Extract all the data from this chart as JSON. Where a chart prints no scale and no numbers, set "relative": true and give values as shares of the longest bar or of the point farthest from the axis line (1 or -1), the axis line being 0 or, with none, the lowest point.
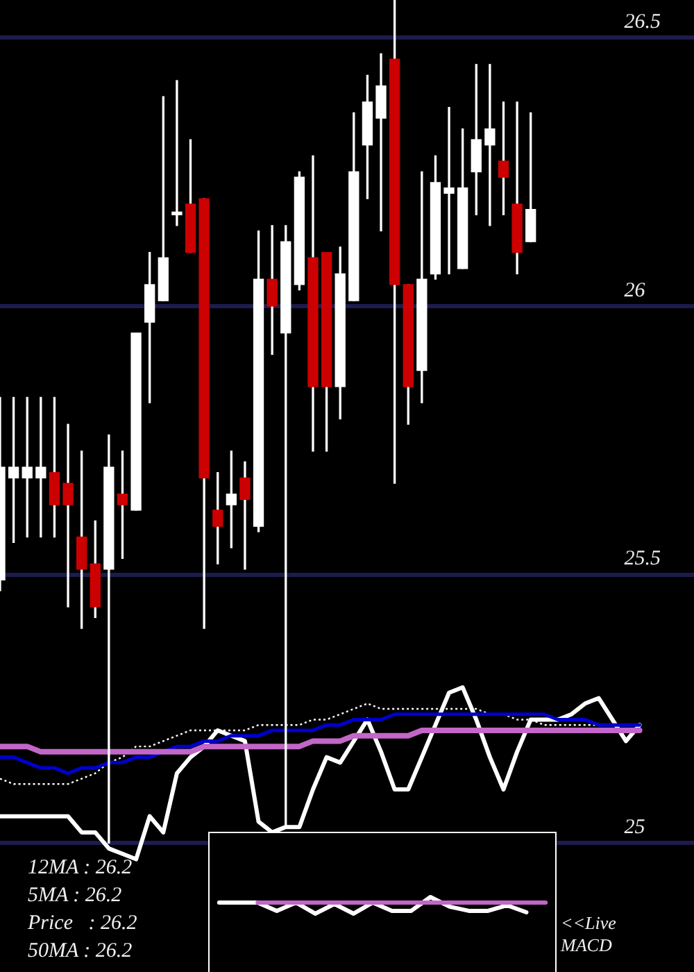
{
  "chart_data": [
    {
      "type": "candlestick",
      "categories": [
        null,
        null,
        null,
        null,
        null,
        null,
        null,
        null,
        null,
        null,
        null,
        null,
        null,
        null,
        null,
        null,
        null,
        null,
        null,
        null,
        null,
        null,
        null,
        null,
        null,
        null,
        null,
        null,
        null,
        null,
        null,
        null,
        null,
        null,
        null,
        null,
        null,
        null,
        null,
        null,
        null,
        null,
        null,
        null,
        null,
        null,
        null,
        null,
        null,
        null,
        null,
        null
      ],
      "ohlc": [
        [
          25.49,
          25.83,
          25.47,
          25.7
        ],
        [
          25.68,
          25.83,
          25.56,
          25.7
        ],
        [
          25.68,
          25.83,
          25.57,
          25.7
        ],
        [
          25.68,
          25.83,
          25.57,
          25.7
        ],
        [
          25.69,
          25.83,
          25.57,
          25.63
        ],
        [
          25.67,
          25.78,
          25.44,
          25.63
        ],
        [
          25.57,
          25.73,
          25.4,
          25.51
        ],
        [
          25.52,
          25.6,
          25.42,
          25.44
        ],
        [
          25.51,
          25.76,
          25.0,
          25.7
        ],
        [
          25.65,
          25.73,
          25.53,
          25.63
        ],
        [
          25.62,
          25.95,
          25.62,
          25.95
        ],
        [
          25.97,
          26.1,
          25.82,
          26.04
        ],
        [
          26.01,
          26.39,
          26.01,
          26.09
        ],
        [
          26.17,
          26.42,
          26.15,
          26.17
        ],
        [
          26.19,
          26.31,
          26.1,
          26.1
        ],
        [
          26.2,
          26.2,
          25.4,
          25.68
        ],
        [
          25.62,
          25.69,
          25.52,
          25.59
        ],
        [
          25.63,
          25.73,
          25.55,
          25.65
        ],
        [
          25.68,
          25.71,
          25.51,
          25.64
        ],
        [
          25.59,
          26.14,
          25.58,
          26.05
        ],
        [
          26.05,
          26.15,
          25.91,
          26.0
        ],
        [
          25.95,
          26.15,
          25.03,
          26.12
        ],
        [
          26.04,
          26.25,
          26.03,
          26.24
        ],
        [
          26.09,
          26.28,
          25.73,
          25.85
        ],
        [
          26.1,
          26.1,
          25.73,
          25.85
        ],
        [
          25.85,
          26.11,
          25.79,
          26.06
        ],
        [
          26.01,
          26.36,
          26.01,
          26.25
        ],
        [
          26.3,
          26.43,
          26.2,
          26.38
        ],
        [
          26.35,
          26.47,
          26.14,
          26.41
        ],
        [
          26.46,
          26.57,
          25.67,
          26.04
        ],
        [
          26.04,
          26.04,
          25.78,
          25.85
        ],
        [
          25.88,
          26.25,
          25.82,
          26.05
        ],
        [
          26.06,
          26.28,
          26.05,
          26.23
        ],
        [
          26.21,
          26.37,
          26.06,
          26.22
        ],
        [
          26.07,
          26.33,
          26.07,
          26.22
        ],
        [
          26.25,
          26.45,
          26.17,
          26.31
        ],
        [
          26.3,
          26.45,
          26.15,
          26.33
        ],
        [
          26.27,
          26.38,
          26.17,
          26.24
        ],
        [
          26.19,
          26.38,
          26.06,
          26.1
        ],
        [
          26.12,
          26.36,
          26.12,
          26.18
        ],
        null,
        null,
        null,
        null,
        null,
        null,
        null,
        null,
        null,
        null,
        null,
        null
      ],
      "colors": [
        "#ffffff",
        "#ffffff",
        "#ffffff",
        "#ffffff",
        "#cc0000",
        "#cc0000",
        "#cc0000",
        "#cc0000",
        "#ffffff",
        "#cc0000",
        "#ffffff",
        "#ffffff",
        "#ffffff",
        "#ffffff",
        "#cc0000",
        "#cc0000",
        "#cc0000",
        "#ffffff",
        "#cc0000",
        "#ffffff",
        "#cc0000",
        "#ffffff",
        "#ffffff",
        "#cc0000",
        "#cc0000",
        "#ffffff",
        "#ffffff",
        "#ffffff",
        "#ffffff",
        "#cc0000",
        "#cc0000",
        "#ffffff",
        "#ffffff",
        "#ffffff",
        "#ffffff",
        "#ffffff",
        "#ffffff",
        "#cc0000",
        "#cc0000",
        "#ffffff",
        null,
        null,
        null,
        null,
        null,
        null,
        null,
        null,
        null,
        null,
        null,
        null
      ],
      "series": [
        {
          "type": "line",
          "color": "#c266c8",
          "values": [
            25.18,
            25.18,
            25.18,
            25.17,
            25.17,
            25.17,
            25.17,
            25.17,
            25.17,
            25.17,
            25.17,
            25.17,
            25.17,
            25.17,
            25.17,
            25.18,
            25.18,
            25.18,
            25.18,
            25.18,
            25.18,
            25.18,
            25.18,
            25.19,
            25.19,
            25.19,
            25.2,
            25.2,
            25.2,
            25.2,
            25.2,
            25.21,
            25.21,
            25.21,
            25.21,
            25.21,
            25.21,
            25.21,
            25.21,
            25.21,
            25.21,
            25.21,
            25.21,
            25.21,
            25.21,
            25.21,
            25.21,
            25.21,
            null,
            null,
            null,
            null
          ]
        },
        {
          "type": "line",
          "color": "#0000cc",
          "values": [
            25.16,
            25.16,
            25.15,
            25.14,
            25.14,
            25.13,
            25.14,
            25.14,
            25.15,
            25.15,
            25.16,
            25.16,
            25.17,
            25.18,
            25.18,
            25.19,
            25.19,
            25.2,
            25.2,
            25.2,
            25.21,
            25.21,
            25.21,
            25.21,
            25.22,
            25.22,
            25.23,
            25.23,
            25.23,
            25.24,
            25.24,
            25.24,
            25.24,
            25.24,
            25.24,
            25.24,
            25.24,
            25.24,
            25.24,
            25.24,
            25.24,
            25.23,
            25.23,
            25.23,
            25.22,
            25.22,
            25.22,
            25.22,
            null,
            null,
            null,
            null
          ]
        },
        {
          "type": "line",
          "color": "#ffffff",
          "line_style": "dotted",
          "values": [
            25.12,
            25.11,
            25.11,
            25.11,
            25.11,
            25.11,
            25.12,
            25.13,
            25.15,
            25.16,
            25.18,
            25.18,
            25.19,
            25.2,
            25.21,
            25.21,
            25.21,
            25.21,
            25.21,
            25.22,
            25.22,
            25.22,
            25.22,
            25.23,
            25.23,
            25.24,
            25.25,
            25.26,
            25.25,
            25.25,
            25.25,
            25.25,
            25.25,
            25.25,
            25.25,
            25.25,
            25.24,
            25.24,
            25.23,
            25.23,
            25.22,
            25.22,
            25.22,
            25.22,
            25.22,
            25.22,
            25.22,
            25.22,
            null,
            null,
            null,
            null
          ]
        },
        {
          "type": "line",
          "color": "#ffffff",
          "values": [
            25.05,
            25.05,
            25.05,
            25.05,
            25.05,
            25.05,
            25.02,
            25.02,
            24.99,
            24.98,
            24.97,
            25.05,
            25.02,
            25.13,
            25.16,
            25.18,
            25.21,
            25.2,
            25.19,
            25.04,
            25.02,
            25.03,
            25.03,
            25.1,
            25.16,
            25.15,
            25.19,
            25.23,
            25.17,
            25.1,
            25.1,
            25.16,
            25.22,
            25.28,
            25.29,
            25.23,
            25.16,
            25.1,
            25.17,
            25.23,
            25.23,
            25.23,
            25.24,
            25.26,
            25.27,
            25.23,
            25.19,
            25.22,
            null,
            null,
            null,
            null
          ]
        }
      ],
      "ylim": [
        24.76,
        26.57
      ],
      "yticks": [
        25,
        25.5,
        26,
        26.5
      ],
      "grid": "y",
      "tick_labels": "y",
      "marker": "none",
      "line_style": "solid",
      "annotations": [
        "12MA : 26.2",
        "5MA : 26.2",
        "Price   : 26.2",
        "50MA : 26.2"
      ]
    },
    {
      "type": "line",
      "relative": true,
      "categories": [
        null,
        null,
        null,
        null,
        null,
        null,
        null,
        null,
        null,
        null,
        null,
        null,
        null,
        null,
        null,
        null,
        null,
        null
      ],
      "series": [
        {
          "color": "#c266c8",
          "values": [
            null,
            null,
            0.67,
            0.67,
            0.67,
            0.67,
            0.67,
            0.67,
            0.67,
            0.67,
            0.67,
            0.67,
            0.67,
            0.67,
            0.67,
            0.67,
            0.67,
            0.67
          ]
        },
        {
          "color": "#ffffff",
          "values": [
            0.67,
            0.67,
            0.67,
            0.17,
            0.67,
            0,
            0.58,
            0,
            0.67,
            0.17,
            0.17,
            1,
            0.42,
            0.17,
            0.17,
            0.5,
            0.08,
            null
          ]
        }
      ],
      "tick_labels": false,
      "marker": "none",
      "line_style": "solid",
      "annotations": [
        "<<Live MACD"
      ]
    }
  ]
}
